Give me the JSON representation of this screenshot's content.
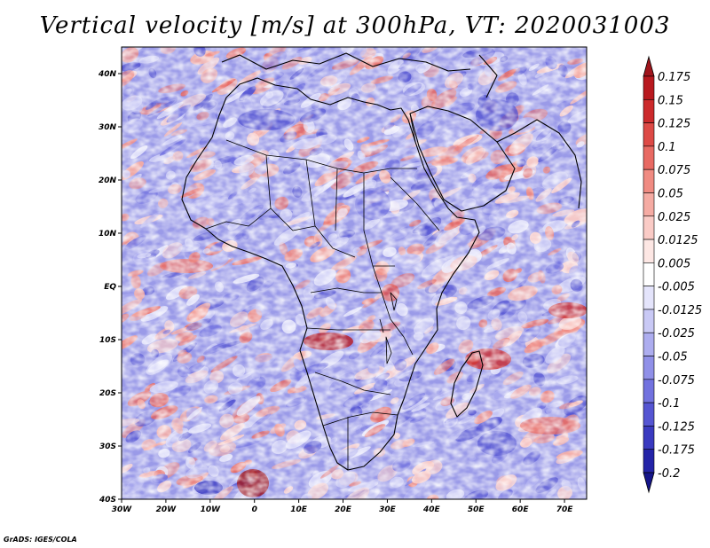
{
  "title": "Vertical velocity [m/s] at 300hPa, VT: 2020031003",
  "credit": "GrADS: IGES/COLA",
  "map": {
    "lat_labels": [
      "40N",
      "30N",
      "20N",
      "10N",
      "EQ",
      "10S",
      "20S",
      "30S",
      "40S"
    ],
    "lon_labels": [
      "30W",
      "20W",
      "10W",
      "0",
      "10E",
      "20E",
      "30E",
      "40E",
      "50E",
      "60E",
      "70E"
    ],
    "lat_range": [
      -40,
      45
    ],
    "lon_range": [
      -30,
      75
    ],
    "field_description": "noisy vertical velocity field over Africa"
  },
  "colorbar": {
    "labels": [
      "0.175",
      "0.15",
      "0.125",
      "0.1",
      "0.075",
      "0.05",
      "0.025",
      "0.0125",
      "0.005",
      "-0.005",
      "-0.0125",
      "-0.025",
      "-0.05",
      "-0.075",
      "-0.1",
      "-0.125",
      "-0.175",
      "-0.2"
    ],
    "colors": [
      "#a0151c",
      "#b8191f",
      "#cc2a2c",
      "#dd4a46",
      "#e86a63",
      "#f08b82",
      "#f5aba3",
      "#facbc6",
      "#fde7e4",
      "#ffffff",
      "#e4e4fb",
      "#c9c9f5",
      "#adadef",
      "#9090e8",
      "#7272df",
      "#5555d2",
      "#3a3ac0",
      "#2424a8",
      "#15158a"
    ]
  },
  "colors": {
    "frame": "#000000",
    "land_outline": "#000000"
  }
}
